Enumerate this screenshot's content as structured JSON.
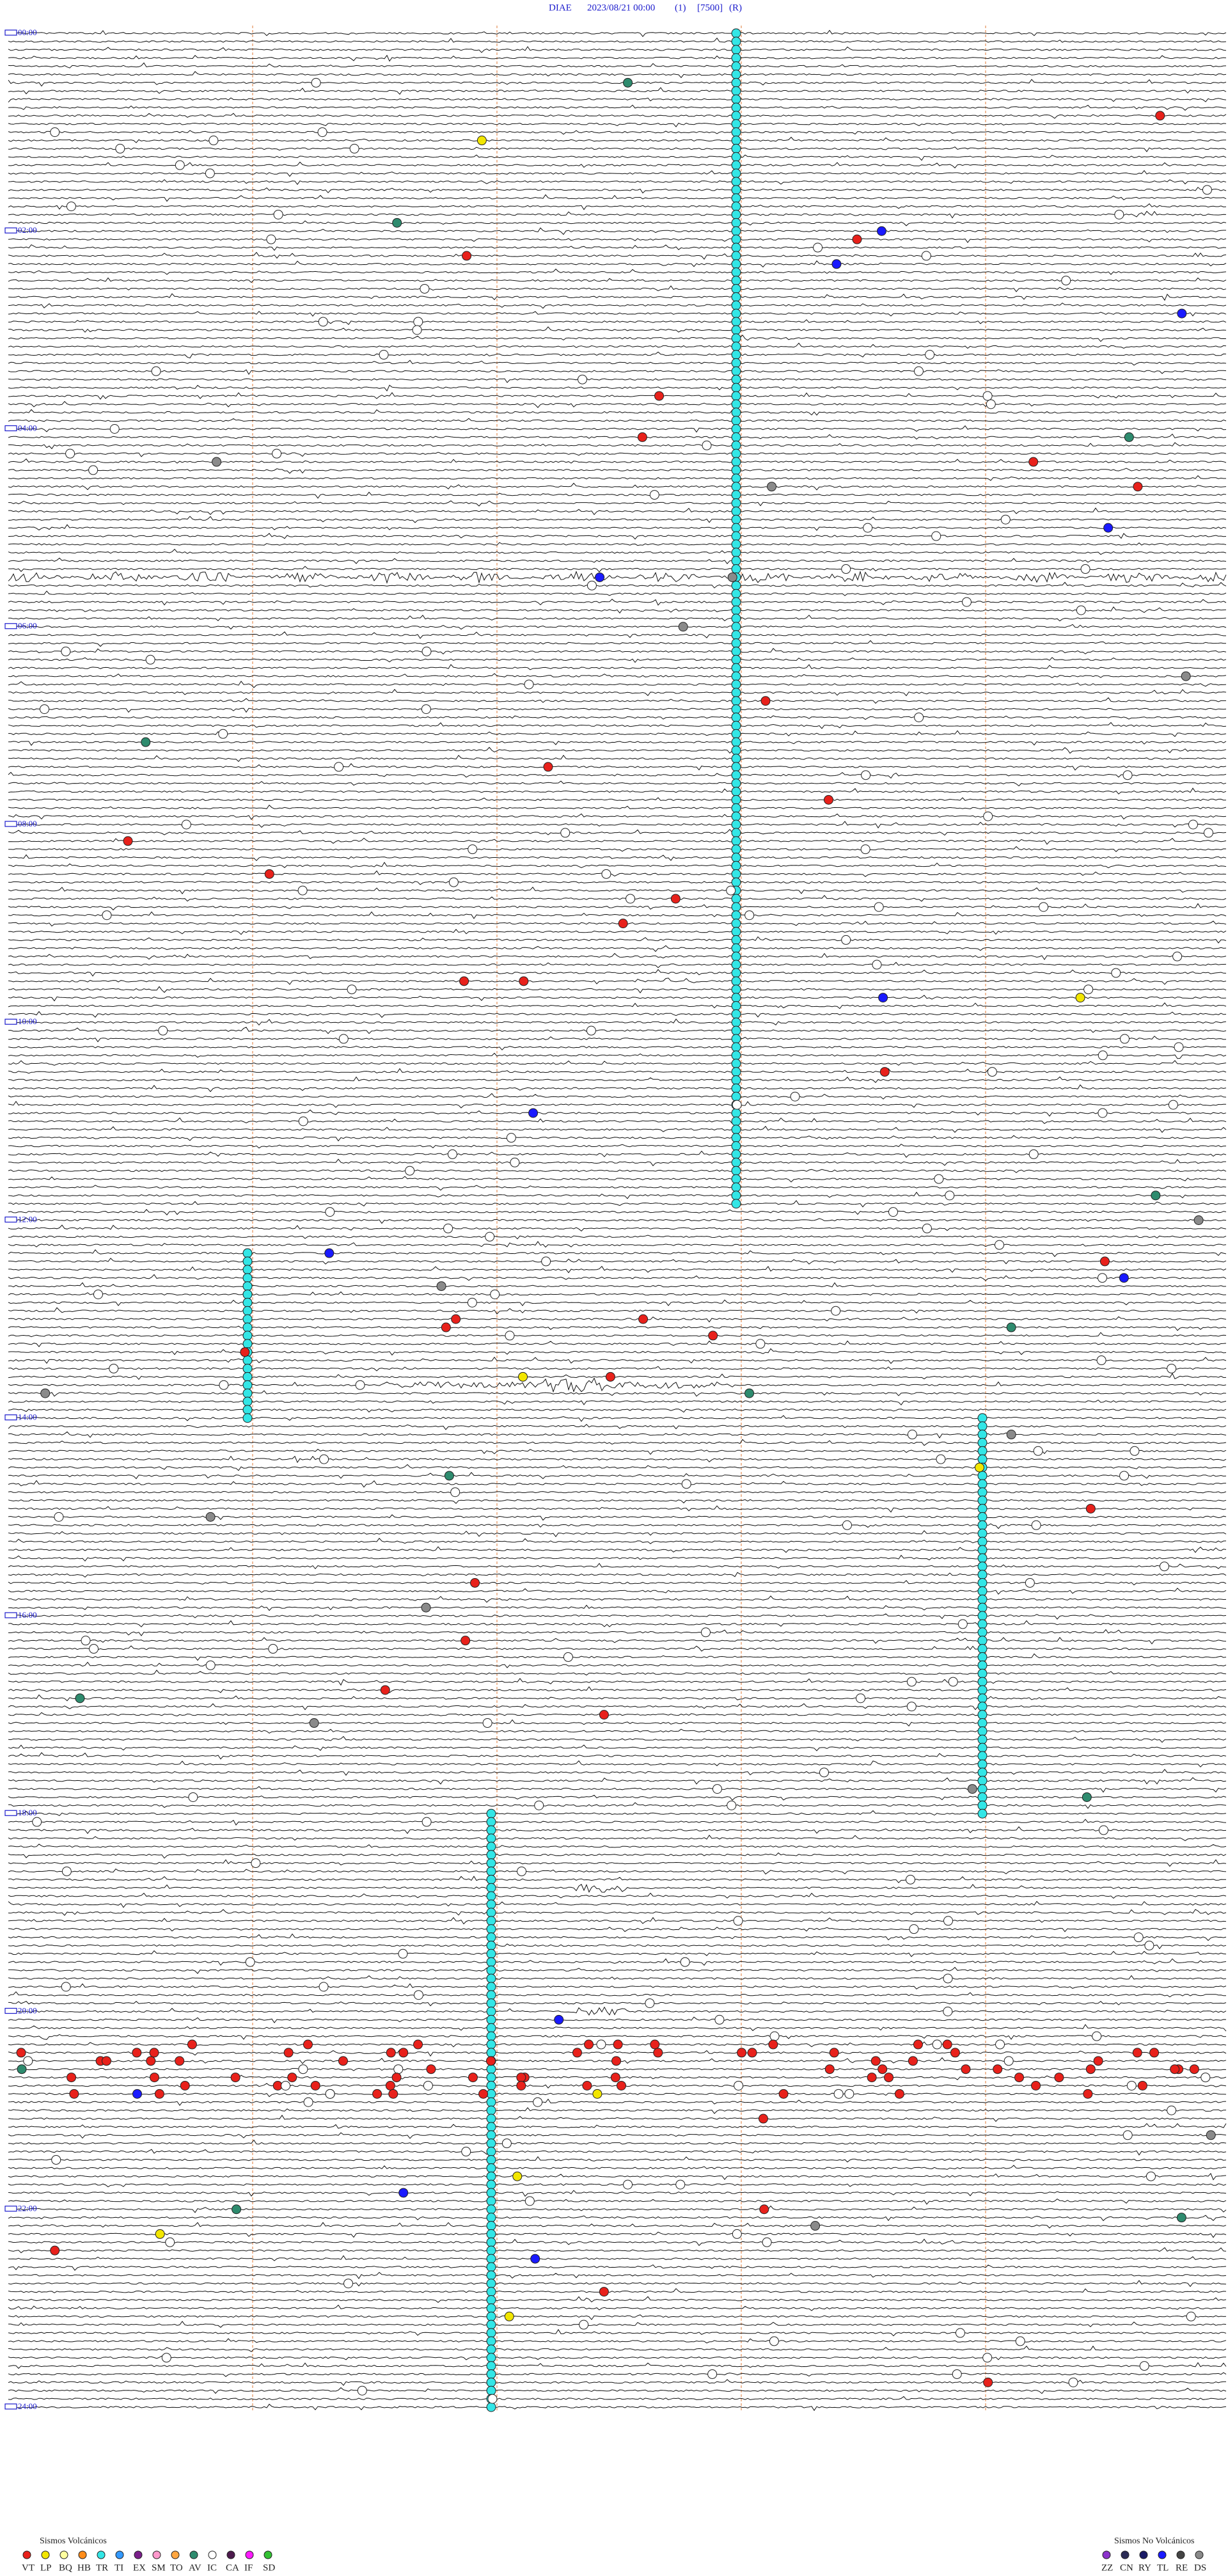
{
  "header": {
    "station": "DIAE",
    "datetime": "2023/08/21 00:00",
    "channel": "(1)",
    "scale": "[7500]",
    "mode": "(R)"
  },
  "hour_labels": [
    "00:00",
    "02:00",
    "04:00",
    "06:00",
    "08:00",
    "10:00",
    "12:00",
    "14:00",
    "16:00",
    "18:00",
    "20:00",
    "22:00",
    "24:00"
  ],
  "legend": {
    "volcanic": {
      "title": "Sismos Volcánicos",
      "items": [
        {
          "code": "VT",
          "color": "#e8211b"
        },
        {
          "code": "LP",
          "color": "#f2e600"
        },
        {
          "code": "BQ",
          "color": "#ffffa0"
        },
        {
          "code": "HB",
          "color": "#ff8c1a"
        },
        {
          "code": "TR",
          "color": "#33e6e6"
        },
        {
          "code": "TI",
          "color": "#3399ff"
        },
        {
          "code": "EX",
          "color": "#7a1f8a"
        },
        {
          "code": "SM",
          "color": "#ff99cc"
        },
        {
          "code": "TO",
          "color": "#ffa640"
        },
        {
          "code": "AV",
          "color": "#2e8b6e"
        },
        {
          "code": "IC",
          "color": "#ffffff"
        },
        {
          "code": "CA",
          "color": "#4d1a4d"
        },
        {
          "code": "IF",
          "color": "#ff1aff"
        },
        {
          "code": "SD",
          "color": "#33c133"
        }
      ]
    },
    "non_volcanic": {
      "title": "Sismos No Volcánicos",
      "items": [
        {
          "code": "ZZ",
          "color": "#8c33cc"
        },
        {
          "code": "CN",
          "color": "#2b2b55"
        },
        {
          "code": "RY",
          "color": "#1a1a66"
        },
        {
          "code": "TL",
          "color": "#1a1aff"
        },
        {
          "code": "RE",
          "color": "#444444"
        },
        {
          "code": "DS",
          "color": "#8a8a8a"
        }
      ]
    }
  }
}
